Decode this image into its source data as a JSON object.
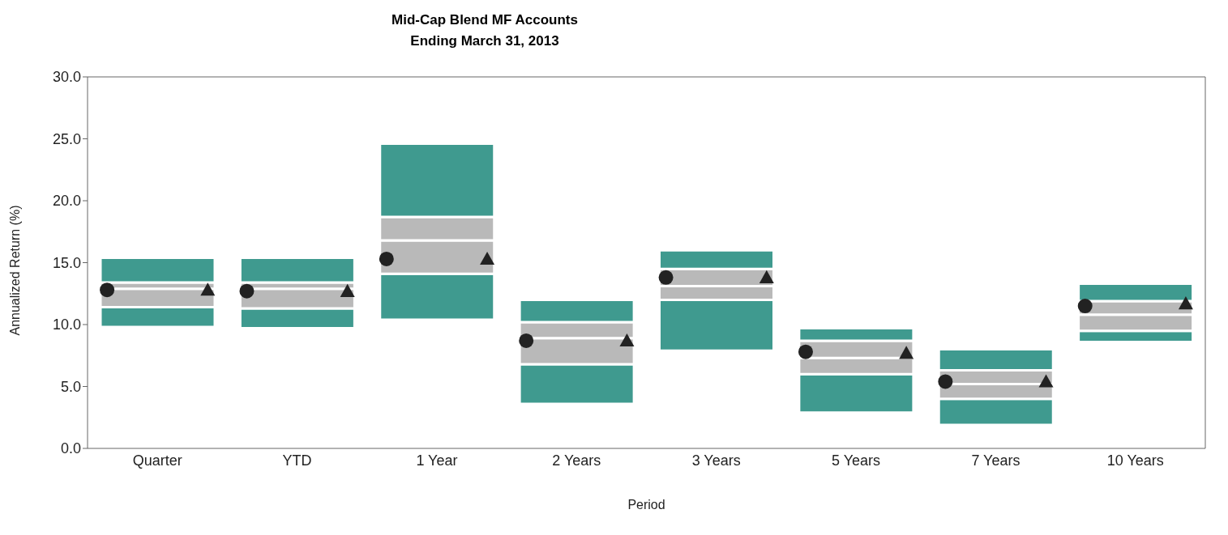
{
  "chart_data": {
    "type": "bar",
    "title": "Mid-Cap Blend MF Accounts",
    "subtitle": "Ending March 31, 2013",
    "xlabel": "Period",
    "ylabel": "Annualized Return (%)",
    "categories": [
      "Quarter",
      "YTD",
      "1 Year",
      "2 Years",
      "3 Years",
      "5 Years",
      "7 Years",
      "10 Years"
    ],
    "series": [
      {
        "color": "#3f9a8f",
        "base": [
          9.8,
          9.7,
          10.4,
          3.6,
          7.9,
          2.9,
          1.9,
          8.6
        ],
        "values": [
          1.6,
          1.6,
          3.7,
          3.2,
          4.1,
          3.1,
          2.1,
          0.9
        ]
      },
      {
        "color": "#b9b9b9",
        "base": [
          11.4,
          11.3,
          14.1,
          6.8,
          12.0,
          6.0,
          4.0,
          9.5
        ],
        "values": [
          1.5,
          1.6,
          2.7,
          2.1,
          1.1,
          1.3,
          1.2,
          1.3
        ]
      },
      {
        "color": "#b9b9b9",
        "base": [
          12.9,
          12.9,
          16.8,
          8.9,
          13.1,
          7.3,
          5.2,
          10.8
        ],
        "values": [
          0.5,
          0.5,
          1.9,
          1.3,
          1.4,
          1.4,
          1.1,
          1.1
        ]
      },
      {
        "color": "#3f9a8f",
        "base": [
          13.4,
          13.4,
          18.7,
          10.2,
          14.5,
          8.7,
          6.3,
          11.9
        ],
        "values": [
          2.0,
          2.0,
          5.9,
          1.8,
          1.5,
          1.0,
          1.7,
          1.4
        ]
      },
      {
        "type": "scatter",
        "marker": "circle",
        "color": "#222222",
        "x": [
          "Quarter",
          "YTD",
          "1 Year",
          "2 Years",
          "3 Years",
          "5 Years",
          "7 Years",
          "10 Years"
        ],
        "values": [
          12.8,
          12.7,
          15.3,
          8.7,
          13.8,
          7.8,
          5.4,
          11.5
        ]
      },
      {
        "type": "scatter",
        "marker": "triangle",
        "color": "#222222",
        "x": [
          "Quarter",
          "YTD",
          "1 Year",
          "2 Years",
          "3 Years",
          "5 Years",
          "7 Years",
          "10 Years"
        ],
        "values": [
          12.8,
          12.7,
          15.3,
          8.7,
          13.8,
          7.7,
          5.4,
          11.7
        ]
      }
    ],
    "ylim": [
      0,
      30
    ],
    "yticks": [
      {
        "value": 0,
        "label": "0.0"
      },
      {
        "value": 5,
        "label": "5.0"
      },
      {
        "value": 10,
        "label": "10.0"
      },
      {
        "value": 15,
        "label": "15.0"
      },
      {
        "value": 20,
        "label": "20.0"
      },
      {
        "value": 25,
        "label": "25.0"
      },
      {
        "value": 30,
        "label": "30.0"
      }
    ],
    "grid": false,
    "legend": false
  }
}
